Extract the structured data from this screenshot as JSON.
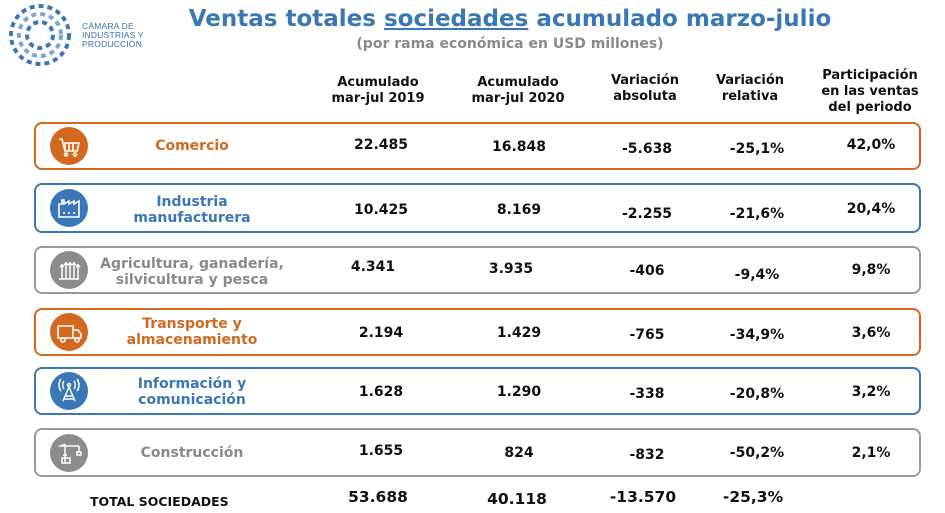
{
  "logo": {
    "lines": [
      "CÁMARA DE",
      "INDUSTRIAS Y",
      "PRODUCCIÓN"
    ],
    "icon": "dotted-circle-logo"
  },
  "header": {
    "title_pre": "Ventas totales ",
    "title_underlined": "sociedades",
    "title_post": " acumulado marzo-julio",
    "subtitle": "(por rama económica en USD millones)"
  },
  "columns": [
    {
      "line1": "Acumulado",
      "line2": "mar-jul 2019",
      "line3": ""
    },
    {
      "line1": "Acumulado",
      "line2": "mar-jul 2020",
      "line3": ""
    },
    {
      "line1": "Variación",
      "line2": "absoluta",
      "line3": ""
    },
    {
      "line1": "Variación",
      "line2": "relativa",
      "line3": ""
    },
    {
      "line1": "Participación",
      "line2": "en las ventas",
      "line3": "del periodo"
    }
  ],
  "rows": [
    {
      "line1": "Comercio",
      "line2": "",
      "icon": "shopping-cart-icon",
      "color": "#d2691e",
      "values": [
        "22.485",
        "16.848",
        "-5.638",
        "-25,1%",
        "42,0%"
      ]
    },
    {
      "line1": "Industria",
      "line2": "manufacturera",
      "icon": "factory-icon",
      "color": "#3a78b5",
      "values": [
        "10.425",
        "8.169",
        "-2.255",
        "-21,6%",
        "20,4%"
      ]
    },
    {
      "line1": "Agricultura, ganadería,",
      "line2": "silvicultura y pesca",
      "icon": "wheat-icon",
      "color": "#8c8c8c",
      "values": [
        "4.341",
        "3.935",
        "-406",
        "-9,4%",
        "9,8%"
      ]
    },
    {
      "line1": "Transporte y",
      "line2": "almacenamiento",
      "icon": "truck-icon",
      "color": "#d2691e",
      "values": [
        "2.194",
        "1.429",
        "-765",
        "-34,9%",
        "3,6%"
      ]
    },
    {
      "line1": "Información y",
      "line2": "comunicación",
      "icon": "antenna-icon",
      "color": "#3a78b5",
      "values": [
        "1.628",
        "1.290",
        "-338",
        "-20,8%",
        "3,2%"
      ]
    },
    {
      "line1": "Construcción",
      "line2": "",
      "icon": "crane-icon",
      "color": "#8c8c8c",
      "values": [
        "1.655",
        "824",
        "-832",
        "-50,2%",
        "2,1%"
      ]
    }
  ],
  "total": {
    "label": "TOTAL SOCIEDADES",
    "values": [
      "53.688",
      "40.118",
      "-13.570",
      "-25,3%"
    ]
  }
}
